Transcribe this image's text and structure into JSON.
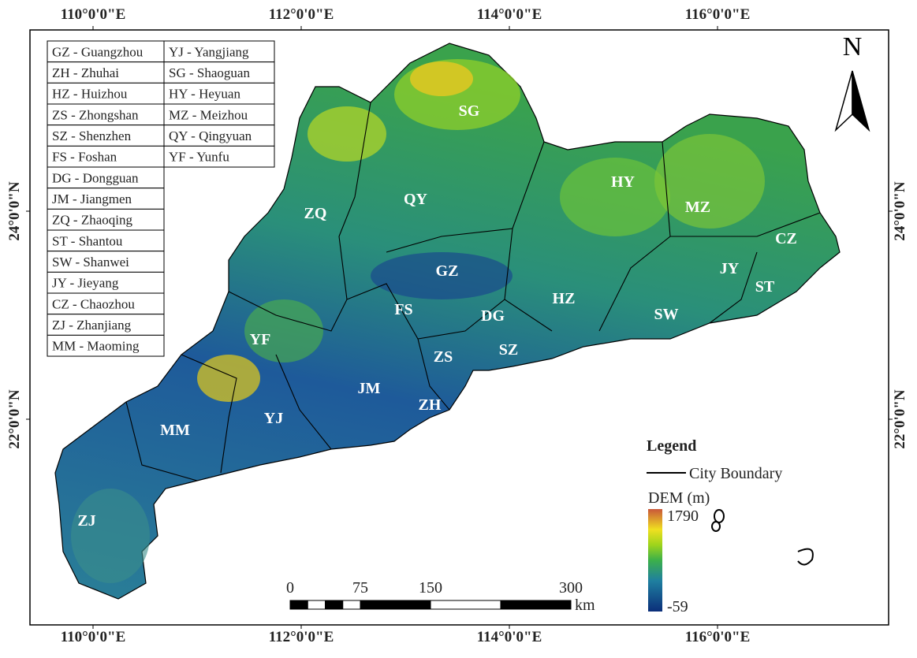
{
  "longitude_labels": [
    "110°0'0\"E",
    "112°0'0\"E",
    "114°0'0\"E",
    "116°0'0\"E"
  ],
  "latitude_labels": [
    "24°0'0\"N",
    "22°0'0\"N"
  ],
  "abbreviations": [
    [
      "GZ - Guangzhou",
      "ZH - Zhuhai",
      "HZ - Huizhou",
      "ZS - Zhongshan",
      "SZ - Shenzhen",
      "FS - Foshan",
      "DG - Dongguan",
      "JM - Jiangmen",
      "ZQ - Zhaoqing",
      "ST - Shantou",
      "SW - Shanwei",
      "JY - Jieyang",
      "CZ - Chaozhou",
      "ZJ - Zhanjiang",
      "MM - Maoming"
    ],
    [
      "YJ - Yangjiang",
      "SG - Shaoguan",
      "HY - Heyuan",
      "MZ - Meizhou",
      "QY - Qingyuan",
      "YF - Yunfu"
    ]
  ],
  "city_labels": [
    "SG",
    "QY",
    "HY",
    "MZ",
    "ZQ",
    "CZ",
    "JY",
    "ST",
    "GZ",
    "FS",
    "DG",
    "HZ",
    "SW",
    "YF",
    "ZS",
    "SZ",
    "JM",
    "ZH",
    "MM",
    "YJ",
    "ZJ"
  ],
  "north_label": "N",
  "legend": {
    "title": "Legend",
    "boundary": "City Boundary",
    "dem_title": "DEM (m)",
    "dem_max": 1790,
    "dem_min": -59
  },
  "scale_bar": {
    "ticks": [
      0,
      75,
      150,
      300
    ],
    "unit": "km"
  }
}
